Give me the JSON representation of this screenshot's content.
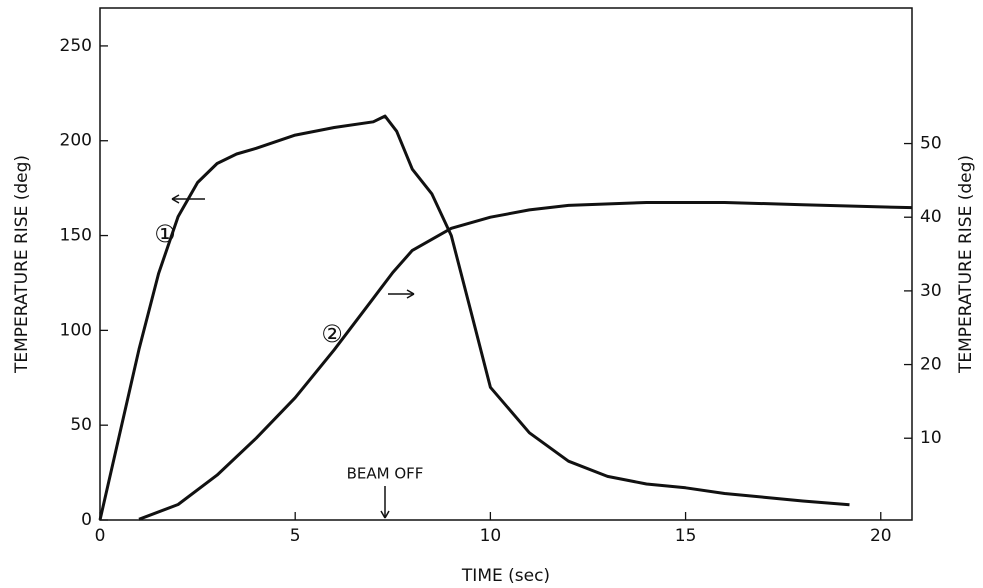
{
  "chart_data": {
    "type": "line",
    "x_label": "TIME (sec)",
    "y_label": "TEMPERATURE RISE (deg)",
    "y2_label": "TEMPERATURE RISE (deg)",
    "xlim": [
      0,
      20.8
    ],
    "xticks": [
      0,
      5,
      10,
      15,
      20
    ],
    "ylim": [
      0,
      270
    ],
    "yticks": [
      0,
      50,
      100,
      150,
      200,
      250
    ],
    "y2lim": [
      -1.1,
      68.4
    ],
    "y2ticks": [
      10,
      20,
      30,
      40,
      50
    ],
    "annotations": [
      "①",
      "②",
      "BEAM OFF"
    ],
    "series": [
      {
        "color": "#111111",
        "axis": "y",
        "x": [
          0,
          0.5,
          1,
          1.5,
          2,
          2.5,
          3,
          3.5,
          4,
          5,
          6,
          7,
          7.3,
          7.6,
          8,
          8.5,
          9,
          9.5,
          10,
          11,
          12,
          13,
          14,
          15,
          16,
          17,
          18,
          19.2
        ],
        "values": [
          0,
          45,
          90,
          130,
          160,
          178,
          188,
          193,
          196,
          203,
          207,
          210,
          213,
          205,
          185,
          172,
          150,
          110,
          70,
          46,
          31,
          23,
          19,
          17,
          14,
          12,
          10,
          8
        ]
      },
      {
        "color": "#111111",
        "axis": "y2",
        "x": [
          1,
          2,
          3,
          4,
          5,
          6,
          7,
          7.5,
          8,
          9,
          10,
          11,
          12,
          14,
          16,
          18,
          20,
          20.8
        ],
        "values": [
          -1,
          1,
          5,
          10,
          15.5,
          22,
          29,
          32.5,
          35.5,
          38.5,
          40,
          41,
          41.6,
          42,
          42,
          41.7,
          41.4,
          41.3
        ]
      }
    ]
  }
}
